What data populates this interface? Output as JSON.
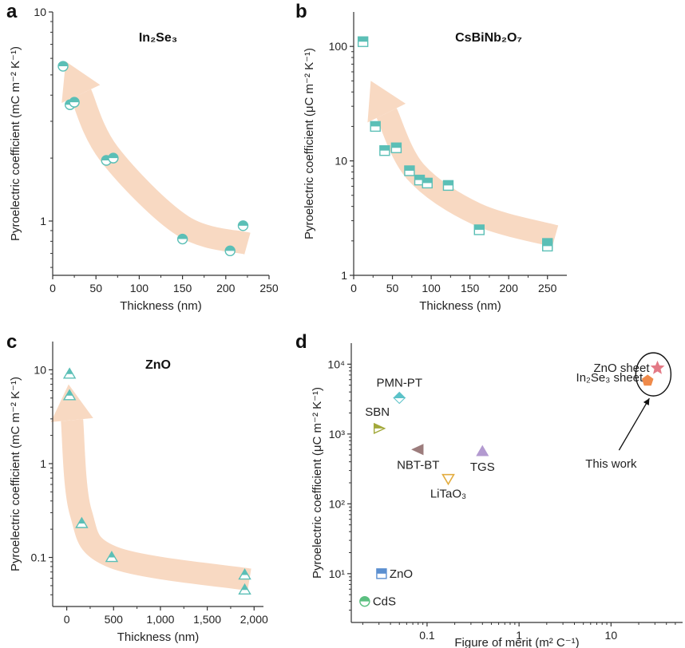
{
  "figure": {
    "colors": {
      "teal": "#5bbfb6",
      "arrow": "#f8d9c2",
      "axis": "#333333"
    },
    "this_work_label": "This work"
  },
  "chart_data": [
    {
      "type": "scatter",
      "panel_letter": "a",
      "title": "In₂Se₃",
      "xlabel": "Thickness (nm)",
      "ylabel": "Pyroelectric coefficient (mC m⁻² K⁻¹)",
      "xscale": "linear",
      "yscale": "log",
      "xlim": [
        0,
        250
      ],
      "ylim": [
        0.55,
        10
      ],
      "xticks": [
        {
          "v": 0,
          "label": "0"
        },
        {
          "v": 50,
          "label": "50"
        },
        {
          "v": 100,
          "label": "100"
        },
        {
          "v": 150,
          "label": "150"
        },
        {
          "v": 200,
          "label": "200"
        },
        {
          "v": 250,
          "label": "250"
        }
      ],
      "yticks": [
        {
          "v": 1,
          "label": "1"
        },
        {
          "v": 10,
          "label": "10"
        }
      ],
      "marker": "half-circle",
      "points": [
        {
          "x": 12,
          "y": 5.5
        },
        {
          "x": 20,
          "y": 3.6
        },
        {
          "x": 25,
          "y": 3.7
        },
        {
          "x": 62,
          "y": 1.95
        },
        {
          "x": 70,
          "y": 2.0
        },
        {
          "x": 150,
          "y": 0.82
        },
        {
          "x": 205,
          "y": 0.72
        },
        {
          "x": 220,
          "y": 0.95
        }
      ],
      "arrow_path": [
        {
          "x": 225,
          "y": 0.78
        },
        {
          "x": 150,
          "y": 0.95
        },
        {
          "x": 65,
          "y": 2.1
        },
        {
          "x": 15,
          "y": 5.8
        }
      ]
    },
    {
      "type": "scatter",
      "panel_letter": "b",
      "title": "CsBiNb₂O₇",
      "xlabel": "Thickness (nm)",
      "ylabel": "Pyroelectric coefficient (μC m⁻² K⁻¹)",
      "xscale": "linear",
      "yscale": "log",
      "xlim": [
        0,
        275
      ],
      "ylim": [
        1,
        200
      ],
      "xticks": [
        {
          "v": 0,
          "label": "0"
        },
        {
          "v": 50,
          "label": "50"
        },
        {
          "v": 100,
          "label": "100"
        },
        {
          "v": 150,
          "label": "150"
        },
        {
          "v": 200,
          "label": "200"
        },
        {
          "v": 250,
          "label": "250"
        }
      ],
      "yticks": [
        {
          "v": 1,
          "label": "1"
        },
        {
          "v": 10,
          "label": "10"
        },
        {
          "v": 100,
          "label": "100"
        }
      ],
      "marker": "half-square",
      "points": [
        {
          "x": 12,
          "y": 110
        },
        {
          "x": 28,
          "y": 20
        },
        {
          "x": 40,
          "y": 12.3
        },
        {
          "x": 55,
          "y": 13
        },
        {
          "x": 72,
          "y": 8.2
        },
        {
          "x": 85,
          "y": 6.8
        },
        {
          "x": 95,
          "y": 6.4
        },
        {
          "x": 122,
          "y": 6.1
        },
        {
          "x": 162,
          "y": 2.5
        },
        {
          "x": 250,
          "y": 1.9
        },
        {
          "x": 250,
          "y": 1.8
        }
      ],
      "arrow_path": [
        {
          "x": 260,
          "y": 2.2
        },
        {
          "x": 160,
          "y": 3.4
        },
        {
          "x": 80,
          "y": 8
        },
        {
          "x": 22,
          "y": 50
        }
      ]
    },
    {
      "type": "scatter",
      "panel_letter": "c",
      "title": "ZnO",
      "xlabel": "Thickness (nm)",
      "ylabel": "Pyroelectric coefficient (mC m⁻² K⁻¹)",
      "xscale": "linear",
      "yscale": "log",
      "xlim": [
        -150,
        2100
      ],
      "ylim": [
        0.03,
        20
      ],
      "xticks": [
        {
          "v": 0,
          "label": "0"
        },
        {
          "v": 500,
          "label": "500"
        },
        {
          "v": 1000,
          "label": "1,000"
        },
        {
          "v": 1500,
          "label": "1,500"
        },
        {
          "v": 2000,
          "label": "2,000"
        }
      ],
      "yticks": [
        {
          "v": 0.1,
          "label": "0.1"
        },
        {
          "v": 1,
          "label": "1"
        },
        {
          "v": 10,
          "label": "10"
        }
      ],
      "marker": "half-triangle",
      "points": [
        {
          "x": 30,
          "y": 9
        },
        {
          "x": 30,
          "y": 5.3
        },
        {
          "x": 160,
          "y": 0.23
        },
        {
          "x": 480,
          "y": 0.1
        },
        {
          "x": 1900,
          "y": 0.065
        },
        {
          "x": 1900,
          "y": 0.045
        }
      ],
      "arrow_path": [
        {
          "x": 1950,
          "y": 0.058
        },
        {
          "x": 500,
          "y": 0.1
        },
        {
          "x": 150,
          "y": 0.3
        },
        {
          "x": 20,
          "y": 7
        }
      ]
    },
    {
      "type": "scatter",
      "panel_letter": "d",
      "title": "",
      "xlabel": "Figure of merit (m² C⁻¹)",
      "ylabel": "Pyroelectric coefficient (μC m⁻² K⁻¹)",
      "xscale": "log",
      "yscale": "log",
      "xlim": [
        0.015,
        60
      ],
      "ylim": [
        2,
        20000
      ],
      "xticks": [
        {
          "v": 0.1,
          "label": "0.1"
        },
        {
          "v": 1,
          "label": "1"
        },
        {
          "v": 10,
          "label": "10"
        }
      ],
      "yticks": [
        {
          "v": 10,
          "label": "10¹"
        },
        {
          "v": 100,
          "label": "10²"
        },
        {
          "v": 1000,
          "label": "10³"
        },
        {
          "v": 10000,
          "label": "10⁴"
        }
      ],
      "points": [
        {
          "name": "PMN-PT",
          "x": 0.05,
          "y": 3300,
          "marker": "diamond",
          "color": "#5bc2c8",
          "label_pos": "above"
        },
        {
          "name": "SBN",
          "x": 0.03,
          "y": 1200,
          "marker": "tri-right",
          "color": "#a2a83a",
          "label_pos": "above-left"
        },
        {
          "name": "NBT-BT",
          "x": 0.08,
          "y": 600,
          "marker": "tri-left",
          "color": "#9c7c7c",
          "label_pos": "below"
        },
        {
          "name": "TGS",
          "x": 0.4,
          "y": 560,
          "marker": "tri-up",
          "color": "#b39ad0",
          "label_pos": "below"
        },
        {
          "name": "LiTaO₃",
          "x": 0.17,
          "y": 230,
          "marker": "tri-down",
          "color": "#e3ad40",
          "label_pos": "below"
        },
        {
          "name": "ZnO",
          "x": 0.032,
          "y": 10,
          "marker": "half-square",
          "color": "#5b8fd0",
          "label_pos": "right"
        },
        {
          "name": "CdS",
          "x": 0.021,
          "y": 4,
          "marker": "half-circle",
          "color": "#5bbf80",
          "label_pos": "right"
        },
        {
          "name": "ZnO sheet",
          "x": 32,
          "y": 8800,
          "marker": "star",
          "color": "#e37a86",
          "label_pos": "left"
        },
        {
          "name": "In₂Se₃ sheet",
          "x": 25,
          "y": 5800,
          "marker": "pentagon",
          "color": "#ef8a4a",
          "label_pos": "left-low"
        }
      ]
    }
  ]
}
